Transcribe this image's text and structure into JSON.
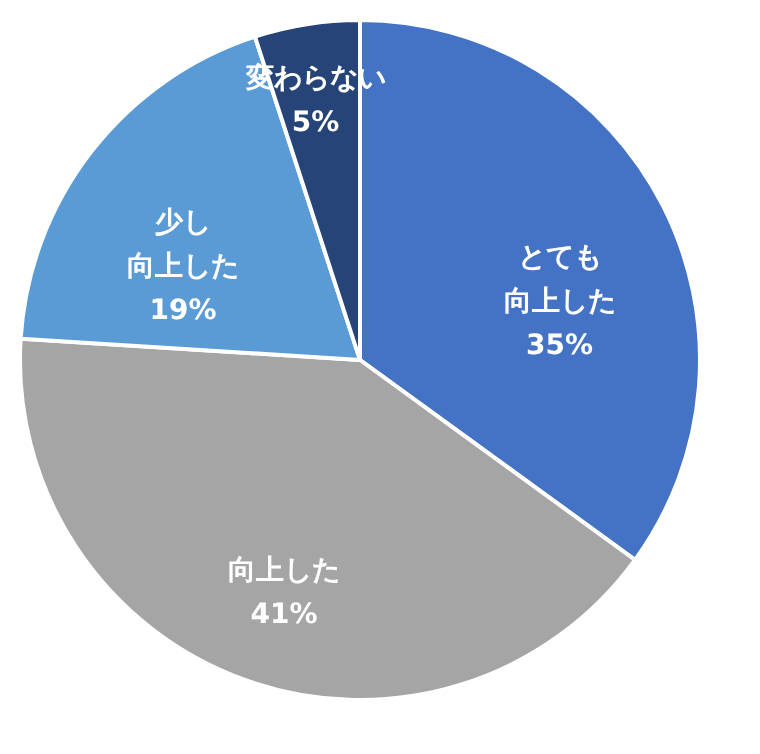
{
  "chart_data": {
    "type": "pie",
    "categories": [
      "とても向上した",
      "向上した",
      "少し向上した",
      "変わらない"
    ],
    "values": [
      35,
      41,
      19,
      5
    ],
    "colors": [
      "#4472c4",
      "#a5a5a5",
      "#5b9bd5",
      "#264478"
    ],
    "value_labels": [
      "35%",
      "41%",
      "19%",
      "5%"
    ],
    "legend": false
  }
}
